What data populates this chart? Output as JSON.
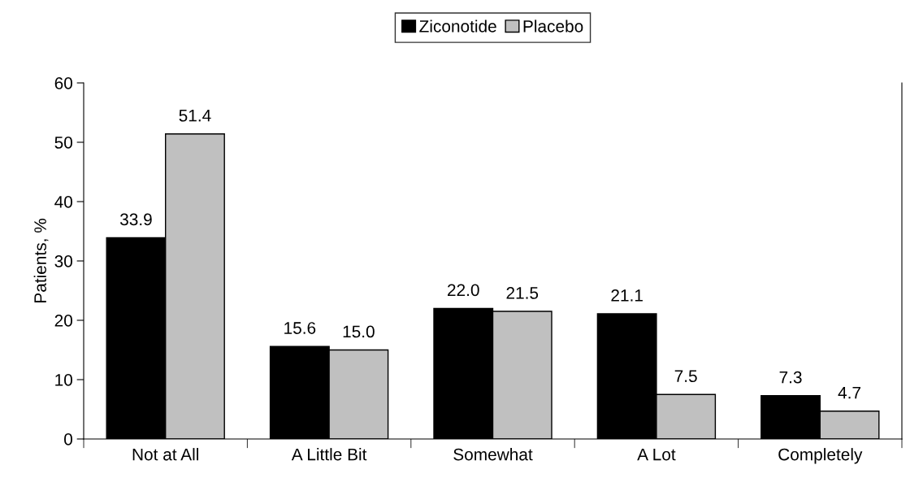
{
  "chart_data": {
    "type": "bar",
    "ylabel": "Patients, %",
    "categories": [
      "Not at All",
      "A Little Bit",
      "Somewhat",
      "A Lot",
      "Completely"
    ],
    "series": [
      {
        "name": "Ziconotide",
        "color": "#000000",
        "values": [
          33.9,
          15.6,
          22.0,
          21.1,
          7.3
        ],
        "value_labels": [
          "33.9",
          "15.6",
          "22.0",
          "21.1",
          "7.3"
        ]
      },
      {
        "name": "Placebo",
        "color": "#c0c0c0",
        "values": [
          51.4,
          15.0,
          21.5,
          7.5,
          4.7
        ],
        "value_labels": [
          "51.4",
          "15.0",
          "21.5",
          "7.5",
          "4.7"
        ]
      }
    ],
    "ylim": [
      0,
      60
    ],
    "yticks": [
      0,
      10,
      20,
      30,
      40,
      50,
      60
    ],
    "grid": false,
    "legend": "top"
  }
}
